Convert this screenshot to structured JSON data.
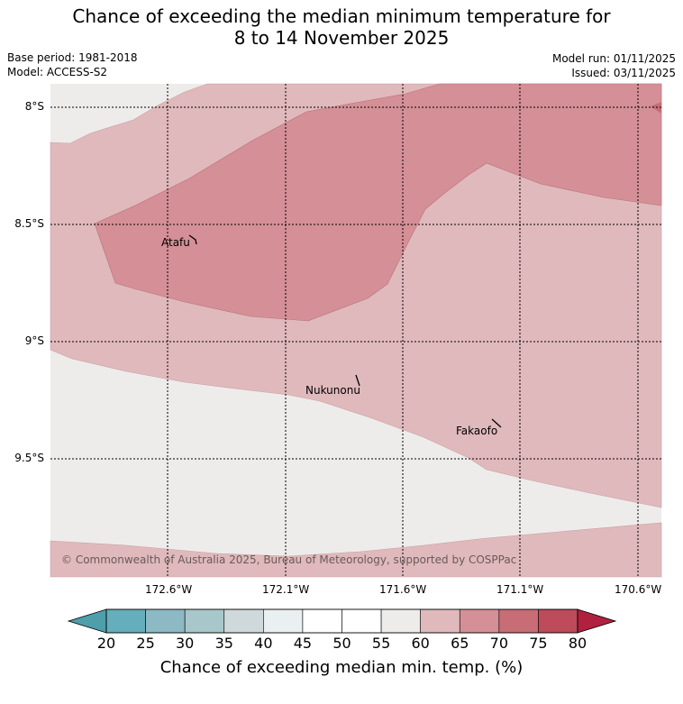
{
  "header": {
    "title_line1": "Chance of exceeding the median minimum temperature for",
    "title_line2": "8 to 14 November 2025",
    "base_period": "Base period: 1981-2018",
    "model": "Model: ACCESS-S2",
    "model_run": "Model run: 01/11/2025",
    "issued": "Issued: 03/11/2025"
  },
  "map": {
    "lat_labels": [
      "8°S",
      "8.5°S",
      "9°S",
      "9.5°S"
    ],
    "lon_labels": [
      "172.6°W",
      "172.1°W",
      "171.6°W",
      "171.1°W",
      "170.6°W"
    ],
    "places": [
      "Atafu",
      "Nukunonu",
      "Fakaofo"
    ],
    "copyright": "© Commonwealth of Australia 2025, Bureau of Meteorology, supported by COSPPac",
    "category_colors": {
      "55_60": "#eeecea",
      "60_65": "#e0b9bc",
      "65_70": "#d58f96",
      "70_75": "#c86c75"
    }
  },
  "colorbar": {
    "ticks": [
      "20",
      "25",
      "30",
      "35",
      "40",
      "45",
      "50",
      "55",
      "60",
      "65",
      "70",
      "75",
      "80"
    ],
    "colors": [
      "#4e9eac",
      "#65aebb",
      "#8cb9c3",
      "#a8c7cb",
      "#cfd8da",
      "#eaf0f1",
      "#ffffff",
      "#ffffff",
      "#eeecea",
      "#e0b9bc",
      "#d58f96",
      "#c86c75",
      "#bd4b5a",
      "#b0213f"
    ],
    "label": "Chance of exceeding median min. temp. (%)"
  }
}
